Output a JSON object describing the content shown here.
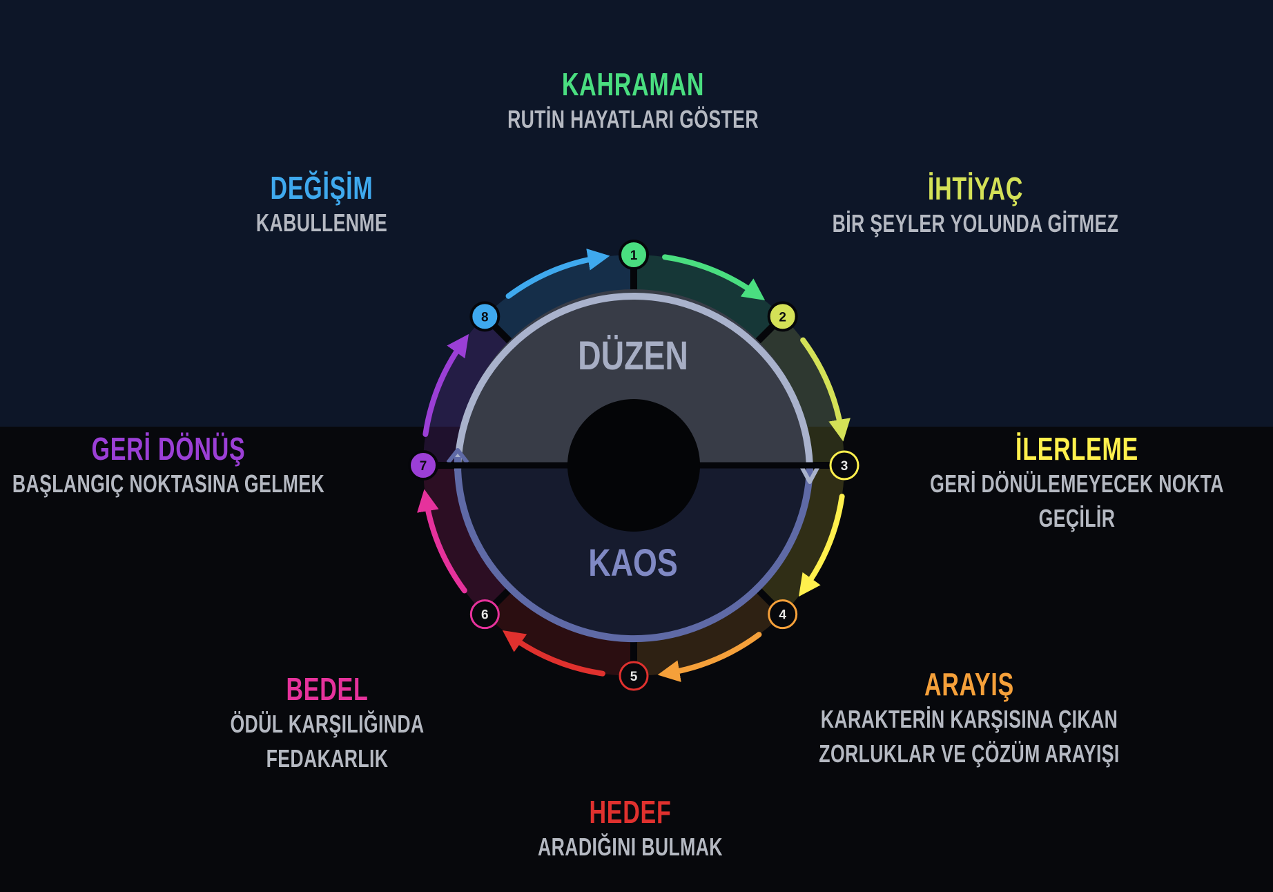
{
  "stages": [
    {
      "num": "1",
      "title": "KAHRAMAN",
      "desc": [
        "RUTİN HAYATLARI GÖSTER"
      ],
      "color": "#4ade80"
    },
    {
      "num": "2",
      "title": "İHTİYAÇ",
      "desc": [
        "BİR ŞEYLER YOLUNDA GİTMEZ"
      ],
      "color": "#d4e157"
    },
    {
      "num": "3",
      "title": "İLERLEME",
      "desc": [
        "GERİ DÖNÜLEMEYECEK NOKTA",
        "GEÇİLİR"
      ],
      "color": "#fff04d"
    },
    {
      "num": "4",
      "title": "ARAYIŞ",
      "desc": [
        "KARAKTERİN KARŞISINA ÇIKAN",
        "ZORLUKLAR VE ÇÖZÜM ARAYIŞI"
      ],
      "color": "#f5a03a"
    },
    {
      "num": "5",
      "title": "HEDEF",
      "desc": [
        "ARADIĞINI BULMAK"
      ],
      "color": "#e0312e"
    },
    {
      "num": "6",
      "title": "BEDEL",
      "desc": [
        "ÖDÜL KARŞILIĞINDA",
        "FEDAKARLIK"
      ],
      "color": "#e6329c"
    },
    {
      "num": "7",
      "title": "GERİ DÖNÜŞ",
      "desc": [
        "BAŞLANGIÇ NOKTASINA GELMEK"
      ],
      "color": "#9b3fd6"
    },
    {
      "num": "8",
      "title": "DEĞİŞİM",
      "desc": [
        "KABULLENME"
      ],
      "color": "#3fa9ee"
    }
  ],
  "center": {
    "top_label": "DÜZEN",
    "bottom_label": "KAOS"
  },
  "colors": {
    "background_top": "#0d1628",
    "background_bottom": "#07080c",
    "ring_top": "#a9b2cc",
    "ring_bottom": "#5f6aa6"
  }
}
